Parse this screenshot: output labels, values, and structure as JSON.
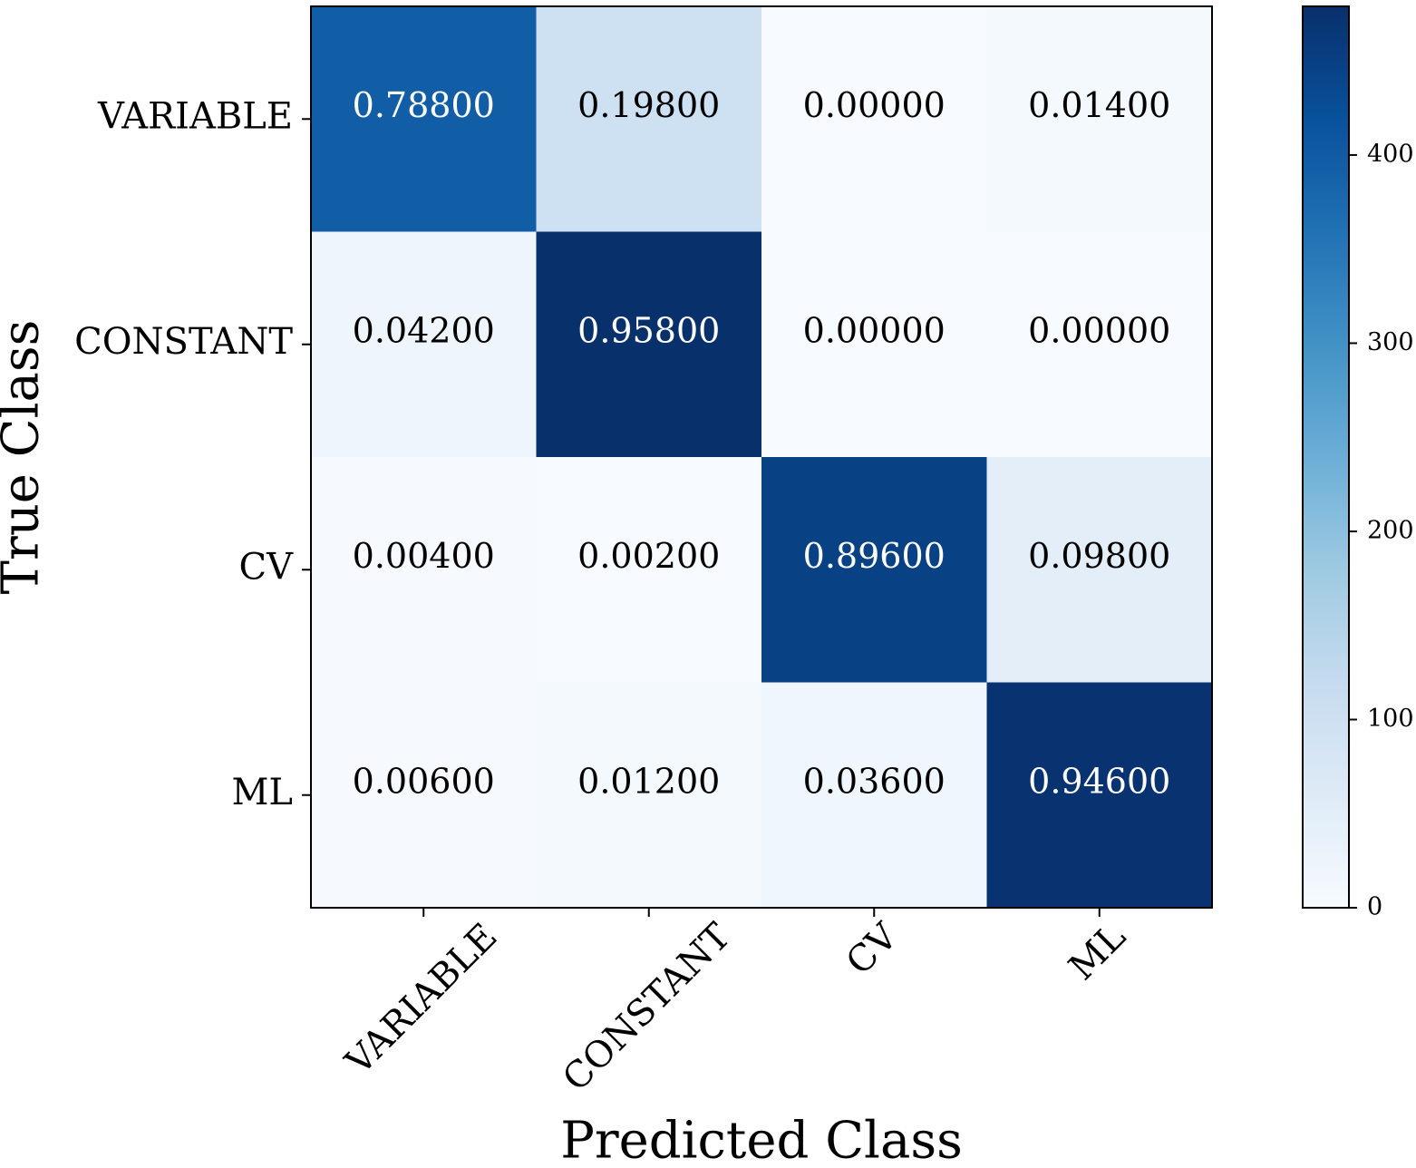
{
  "chart_data": {
    "type": "heatmap",
    "xlabel": "Predicted Class",
    "ylabel": "True Class",
    "x_categories": [
      "VARIABLE",
      "CONSTANT",
      "CV",
      "ML"
    ],
    "y_categories": [
      "VARIABLE",
      "CONSTANT",
      "CV",
      "ML"
    ],
    "values": [
      [
        0.788,
        0.198,
        0.0,
        0.014
      ],
      [
        0.042,
        0.958,
        0.0,
        0.0
      ],
      [
        0.004,
        0.002,
        0.896,
        0.098
      ],
      [
        0.006,
        0.012,
        0.036,
        0.946
      ]
    ],
    "value_labels": [
      [
        "0.78800",
        "0.19800",
        "0.00000",
        "0.01400"
      ],
      [
        "0.04200",
        "0.95800",
        "0.00000",
        "0.00000"
      ],
      [
        "0.00400",
        "0.00200",
        "0.89600",
        "0.09800"
      ],
      [
        "0.00600",
        "0.01200",
        "0.03600",
        "0.94600"
      ]
    ],
    "colormap": "Blues",
    "colorbar": {
      "zlim": [
        0,
        479
      ],
      "ticks": [
        0,
        100,
        200,
        300,
        400
      ]
    }
  }
}
